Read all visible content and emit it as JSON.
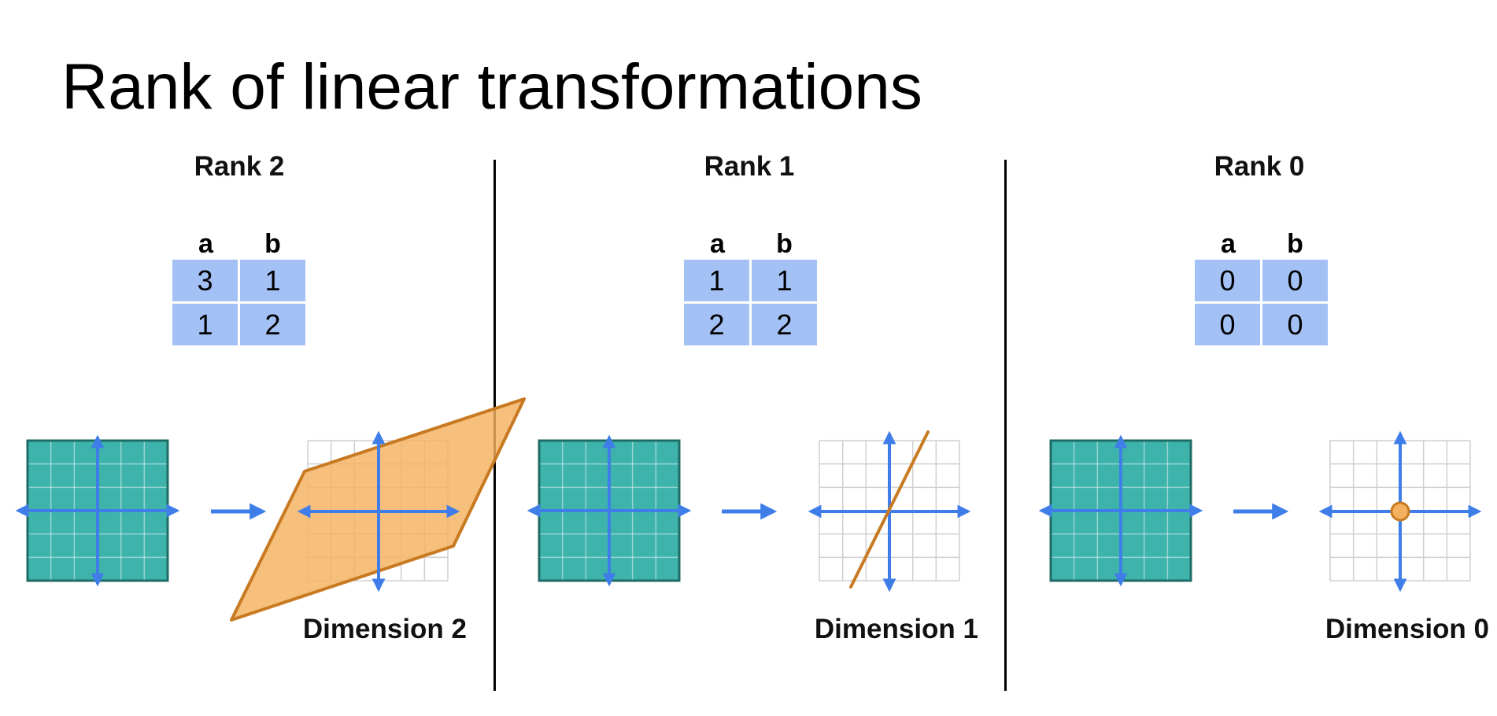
{
  "title": "Rank of linear transformations",
  "colors": {
    "axis": "#3f7ee8",
    "source_fill": "#3eb3ac",
    "source_border": "#1f6c66",
    "grid_light": "#cfcfcf",
    "image_fill": "#f5b15f",
    "image_stroke": "#c77a22",
    "matrix_cell": "#a4c1f6"
  },
  "panels": [
    {
      "label": "Rank 2",
      "headers": [
        "a",
        "b"
      ],
      "matrix": [
        [
          "3",
          "1"
        ],
        [
          "1",
          "2"
        ]
      ],
      "dimension_label": "Dimension 2",
      "image_type": "parallelogram"
    },
    {
      "label": "Rank 1",
      "headers": [
        "a",
        "b"
      ],
      "matrix": [
        [
          "1",
          "1"
        ],
        [
          "2",
          "2"
        ]
      ],
      "dimension_label": "Dimension 1",
      "image_type": "line"
    },
    {
      "label": "Rank 0",
      "headers": [
        "a",
        "b"
      ],
      "matrix": [
        [
          "0",
          "0"
        ],
        [
          "0",
          "0"
        ]
      ],
      "dimension_label": "Dimension 0",
      "image_type": "point"
    }
  ]
}
